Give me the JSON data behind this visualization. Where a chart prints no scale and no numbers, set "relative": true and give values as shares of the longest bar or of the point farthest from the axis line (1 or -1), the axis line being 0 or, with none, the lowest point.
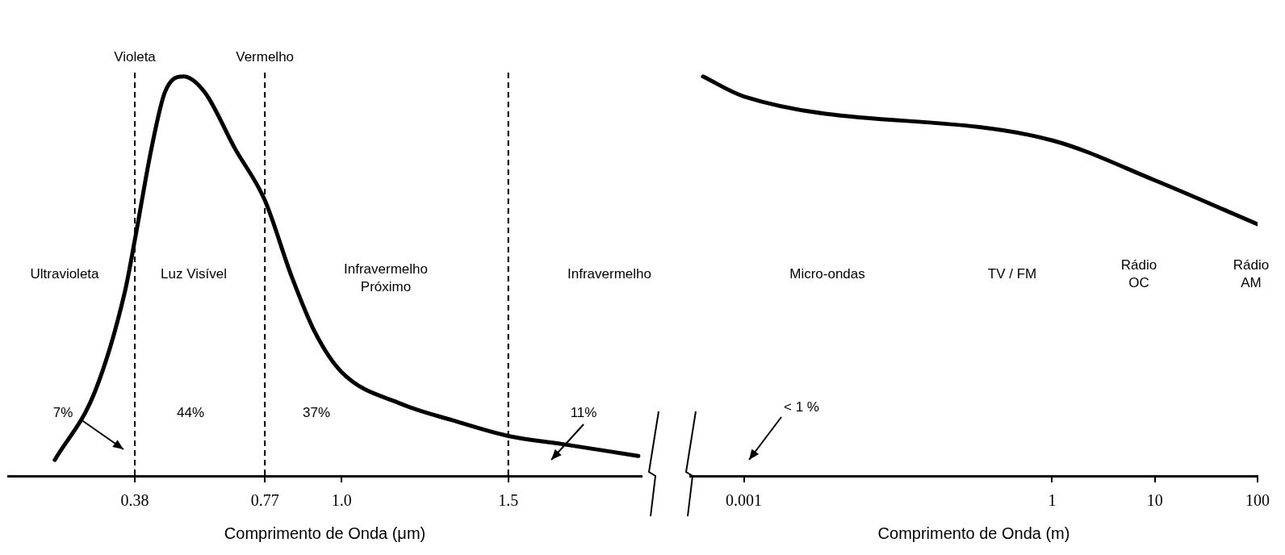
{
  "chart_data": [
    {
      "type": "line",
      "relative": true,
      "xlabel": "Comprimento de Onda (μm)",
      "xlim": [
        0,
        1.9
      ],
      "xticks": [
        0.38,
        0.77,
        {
          "value": 1,
          "label": "1.0"
        },
        1.5
      ],
      "tick_labels": "x",
      "color": "#000000",
      "x": [
        0.14,
        0.26,
        0.35,
        0.38,
        0.43,
        0.47,
        0.526,
        0.59,
        0.68,
        0.77,
        0.85,
        0.92,
        1.0,
        1.18,
        1.33,
        1.5,
        1.66,
        1.89
      ],
      "values": [
        0.04,
        0.21,
        0.46,
        0.59,
        0.82,
        0.96,
        1,
        0.96,
        0.82,
        0.69,
        0.5,
        0.36,
        0.26,
        0.18,
        0.14,
        0.1,
        0.08,
        0.05
      ],
      "ref_lines": [
        {
          "axis": "x",
          "value": 0.38,
          "label": "Violeta",
          "line_style": "dashed"
        },
        {
          "axis": "x",
          "value": 0.77,
          "label": "Vermelho",
          "line_style": "dashed"
        },
        {
          "axis": "x",
          "value": 1.5,
          "line_style": "dashed"
        }
      ],
      "annotations": [
        "Ultravioleta",
        "Luz Visível",
        "Infravermelho\nPróximo",
        "Infravermelho",
        "7%",
        "44%",
        "37%",
        "11%"
      ]
    },
    {
      "type": "line",
      "relative": true,
      "log": "x",
      "xlabel": "Comprimento de Onda (m)",
      "xlim": [
        0.0003,
        100
      ],
      "xticks": [
        0.001,
        1,
        10,
        100
      ],
      "tick_labels": "x",
      "color": "#000000",
      "x": [
        0.0004,
        0.001,
        1,
        10,
        100
      ],
      "values": [
        1,
        0.95,
        0.84,
        0.74,
        0.63
      ],
      "annotations": [
        "< 1 %",
        "Micro-ondas",
        "TV / FM",
        "Rádio\nOC",
        "Rádio\nAM"
      ]
    }
  ]
}
